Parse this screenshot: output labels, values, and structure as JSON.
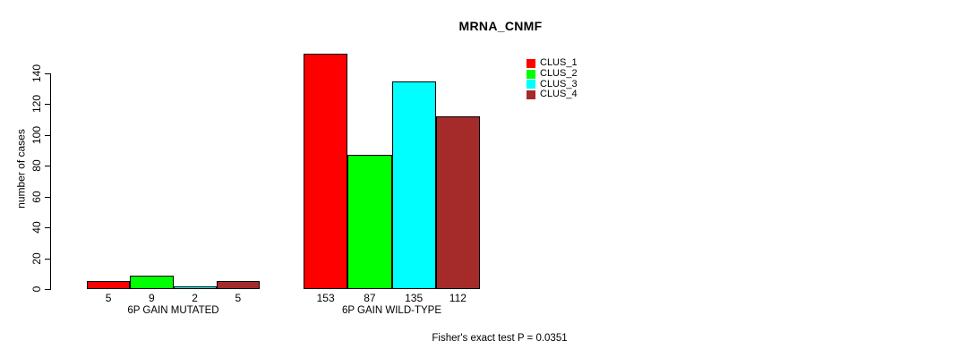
{
  "chart_data": {
    "type": "bar",
    "title": "MRNA_CNMF",
    "ylabel": "number of cases",
    "xlabel": "",
    "groups": [
      {
        "label": "6P GAIN MUTATED",
        "values": [
          5,
          9,
          2,
          5
        ]
      },
      {
        "label": "6P GAIN WILD-TYPE",
        "values": [
          153,
          87,
          135,
          112
        ]
      }
    ],
    "series": [
      {
        "name": "CLUS_1",
        "color": "#FF0000"
      },
      {
        "name": "CLUS_2",
        "color": "#00FF00"
      },
      {
        "name": "CLUS_3",
        "color": "#00FFFF"
      },
      {
        "name": "CLUS_4",
        "color": "#A52A2A"
      }
    ],
    "yticks": [
      0,
      20,
      40,
      60,
      80,
      100,
      120,
      140
    ],
    "ylim": [
      0,
      140
    ],
    "grid": false,
    "legend_position": "top-right",
    "bar_value_labels": true,
    "bar_border_color": "#000000",
    "annotation": "Fisher's exact test P = 0.0351"
  }
}
